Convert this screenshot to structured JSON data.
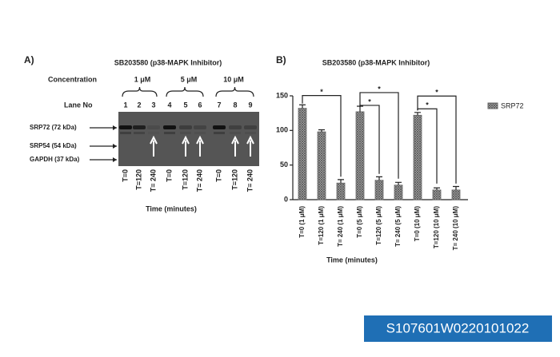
{
  "panel_a": {
    "label": "A)",
    "title": "SB203580 (p38-MAPK Inhibitor)",
    "concentration_label": "Concentration",
    "concentrations": [
      "1 μM",
      "5 μM",
      "10 μM"
    ],
    "lane_label": "Lane No",
    "lanes": [
      "1",
      "2",
      "3",
      "4",
      "5",
      "6",
      "7",
      "8",
      "9"
    ],
    "bands": [
      "SRP72 (72 kDa)",
      "SRP54 (54 kDa)",
      "GAPDH (37 kDa)"
    ],
    "times": [
      "T=0",
      "T=120",
      "T= 240",
      "T=0",
      "T=120",
      "T= 240",
      "T=0",
      "T=120",
      "T= 240"
    ],
    "xlabel": "Time (minutes)"
  },
  "chart_data": {
    "type": "bar",
    "panel_label": "B)",
    "title": "SB203580 (p38-MAPK Inhibitor)",
    "categories": [
      "T=0 (1 μM)",
      "T=120 (1 μM)",
      "T= 240 (1 μM)",
      "T=0 (5 μM)",
      "T=120 (5 μM)",
      "T= 240 (5 μM)",
      "T=0 (10 μM)",
      "T=120 (10 μM)",
      "T= 240 (10 μM)"
    ],
    "series": [
      {
        "name": "SRP72",
        "color": "#666666",
        "values": [
          132,
          98,
          24,
          127,
          28,
          21,
          122,
          14,
          14
        ],
        "errors": [
          5,
          3,
          5,
          8,
          5,
          4,
          4,
          3,
          5
        ]
      }
    ],
    "significance": [
      {
        "from": 0,
        "to": 2,
        "label": "*"
      },
      {
        "from": 3,
        "to": 4,
        "label": "*"
      },
      {
        "from": 3,
        "to": 5,
        "label": "*"
      },
      {
        "from": 6,
        "to": 7,
        "label": "*"
      },
      {
        "from": 6,
        "to": 8,
        "label": "*"
      }
    ],
    "ylim": [
      0,
      150
    ],
    "yticks": [
      0,
      50,
      100,
      150
    ],
    "xlabel": "Time (minutes)",
    "legend": "right"
  },
  "watermark_id": "S107601W0220101022"
}
